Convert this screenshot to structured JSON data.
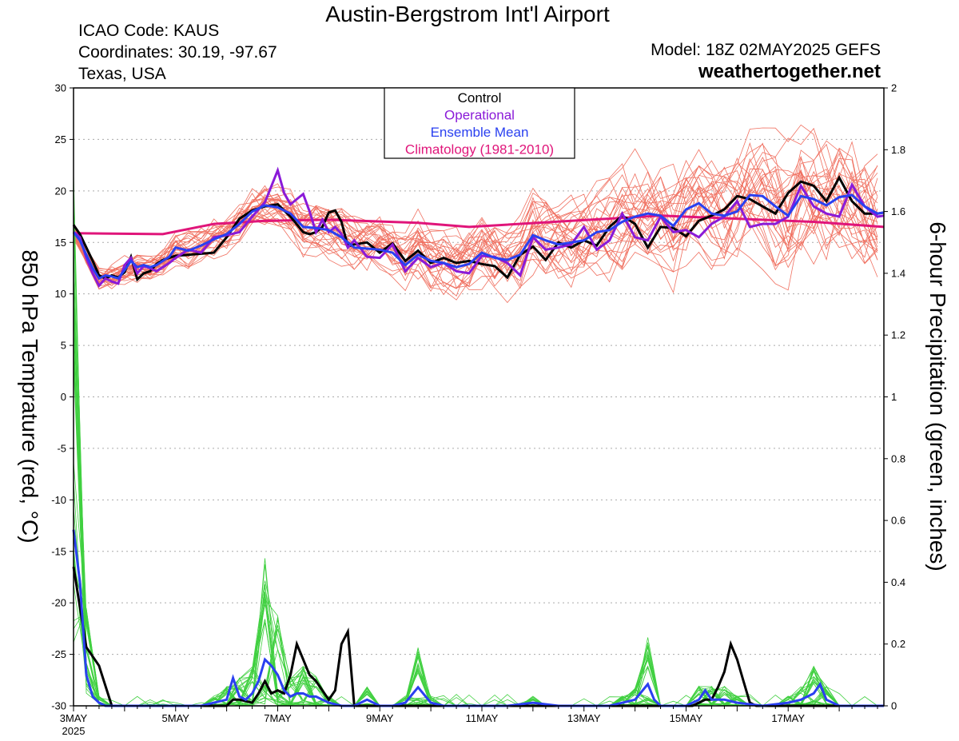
{
  "header": {
    "title": "Austin-Bergstrom Int'l Airport",
    "icao": "ICAO Code: KAUS",
    "coordinates": "Coordinates: 30.19, -97.67",
    "region": "Texas, USA",
    "model": "Model: 18Z 02MAY2025 GEFS",
    "site": "weathertogether.net"
  },
  "chart_data": {
    "type": "line",
    "y_left_label": "850 hPa Temprature (red, °C)",
    "y_right_label": "6-hour Precipitation (green, inches)",
    "y_left_range": [
      -30,
      30
    ],
    "y_right_range": [
      0,
      2
    ],
    "y_left_ticks": [
      "30",
      "25",
      "20",
      "15",
      "10",
      "5",
      "0",
      "-5",
      "-10",
      "-15",
      "-20",
      "-25",
      "-30"
    ],
    "y_right_ticks": [
      "2",
      "1.8",
      "1.6",
      "1.4",
      "1.2",
      "1",
      "0.8",
      "0.6",
      "0.4",
      "0.2",
      "0"
    ],
    "x_range_days": [
      3.0,
      18.875
    ],
    "x_ticks": [
      {
        "day": 3,
        "label": "3MAY",
        "sub": "2025"
      },
      {
        "day": 5,
        "label": "5MAY",
        "sub": ""
      },
      {
        "day": 7,
        "label": "7MAY",
        "sub": ""
      },
      {
        "day": 9,
        "label": "9MAY",
        "sub": ""
      },
      {
        "day": 11,
        "label": "11MAY",
        "sub": ""
      },
      {
        "day": 13,
        "label": "13MAY",
        "sub": ""
      },
      {
        "day": 15,
        "label": "15MAY",
        "sub": ""
      },
      {
        "day": 17,
        "label": "17MAY",
        "sub": ""
      }
    ],
    "grid": true,
    "legend": {
      "position": "top-center",
      "entries": [
        {
          "label": "Control",
          "color": "#000000"
        },
        {
          "label": "Operational",
          "color": "#8a1ad8"
        },
        {
          "label": "Ensemble Mean",
          "color": "#2a40f0"
        },
        {
          "label": "Climatology (1981-2010)",
          "color": "#e0157a"
        }
      ]
    },
    "colors": {
      "control": "#000000",
      "operational": "#8a1ad8",
      "mean": "#2a40f0",
      "climatology": "#e0157a",
      "members_temp": "#f07060",
      "members_precip": "#40d040"
    },
    "series": {
      "climatology": {
        "x": [
          3.0,
          4.75,
          5.75,
          6.75,
          8.0,
          9.75,
          10.75,
          12.75,
          14.5,
          16.0,
          17.5,
          18.875
        ],
        "y": [
          15.9,
          15.8,
          16.8,
          17.1,
          17.2,
          16.9,
          16.5,
          17.1,
          17.6,
          17.3,
          17.0,
          16.5
        ]
      },
      "control_temp": {
        "x": [
          3.0,
          3.125,
          3.25,
          3.375,
          3.5,
          3.625,
          3.75,
          3.875,
          4.0,
          4.125,
          4.25,
          4.375,
          4.5,
          4.625,
          4.75,
          4.875,
          5.0,
          5.25,
          5.5,
          5.75,
          6.0,
          6.25,
          6.5,
          6.75,
          7.0,
          7.25,
          7.5,
          7.625,
          7.75,
          7.875,
          8.0,
          8.125,
          8.25,
          8.375,
          8.5,
          8.75,
          9.0,
          9.25,
          9.5,
          9.75,
          10.0,
          10.25,
          10.5,
          10.75,
          11.0,
          11.25,
          11.5,
          11.75,
          12.0,
          12.25,
          12.5,
          12.75,
          13.0,
          13.25,
          13.5,
          13.75,
          14.0,
          14.25,
          14.5,
          14.75,
          15.0,
          15.25,
          15.5,
          15.75,
          16.0,
          16.25,
          16.5,
          16.75,
          17.0,
          17.25,
          17.5,
          17.75,
          18.0,
          18.25,
          18.5,
          18.75,
          18.875
        ],
        "y": [
          16.7,
          15.8,
          14.5,
          13.2,
          11.8,
          11.5,
          11.8,
          11.6,
          12.1,
          13.6,
          11.4,
          12.0,
          12.2,
          12.9,
          13.3,
          13.5,
          13.7,
          13.8,
          13.9,
          14.0,
          15.5,
          17.3,
          18.1,
          18.5,
          18.7,
          17.5,
          16.0,
          15.8,
          16.0,
          16.5,
          17.9,
          18.1,
          17.0,
          14.6,
          14.8,
          15.0,
          14.0,
          14.9,
          13.2,
          14.2,
          13.0,
          13.5,
          13.0,
          13.2,
          12.9,
          12.7,
          11.6,
          13.8,
          14.6,
          13.3,
          15.0,
          14.5,
          15.2,
          14.7,
          16.5,
          17.6,
          16.8,
          14.5,
          16.5,
          16.4,
          15.6,
          17.1,
          17.6,
          18.2,
          19.5,
          19.2,
          18.5,
          17.8,
          19.8,
          20.9,
          20.5,
          19.0,
          21.3,
          19.0,
          17.8,
          17.8,
          17.9
        ]
      },
      "operational_temp": {
        "x": [
          3.0,
          3.125,
          3.25,
          3.375,
          3.5,
          3.625,
          3.75,
          3.875,
          4.0,
          4.125,
          4.25,
          4.375,
          4.5,
          4.625,
          4.75,
          4.875,
          5.0,
          5.25,
          5.5,
          5.75,
          6.0,
          6.25,
          6.5,
          6.75,
          7.0,
          7.125,
          7.25,
          7.375,
          7.5,
          7.625,
          7.75,
          7.875,
          8.0,
          8.125,
          8.25,
          8.375,
          8.5,
          8.75,
          9.0,
          9.25,
          9.5,
          9.75,
          10.0,
          10.25,
          10.5,
          10.75,
          11.0,
          11.25,
          11.5,
          11.75,
          12.0,
          12.25,
          12.5,
          12.75,
          13.0,
          13.25,
          13.5,
          13.75,
          14.0,
          14.25,
          14.5,
          14.75,
          15.0,
          15.25,
          15.5,
          15.75,
          16.0,
          16.25,
          16.5,
          16.75,
          17.0,
          17.25,
          17.5,
          17.75,
          18.0,
          18.25,
          18.5,
          18.75,
          18.875
        ],
        "y": [
          16.0,
          15.5,
          13.5,
          12.0,
          10.8,
          11.5,
          11.2,
          11.0,
          12.8,
          13.5,
          12.0,
          12.7,
          12.5,
          12.2,
          12.6,
          13.0,
          13.5,
          14.3,
          14.0,
          15.5,
          15.7,
          16.0,
          17.5,
          18.9,
          22.0,
          19.8,
          18.7,
          19.2,
          19.7,
          18.0,
          16.0,
          17.2,
          16.0,
          16.5,
          15.8,
          14.5,
          15.2,
          13.6,
          13.5,
          14.8,
          12.2,
          13.5,
          12.6,
          13.0,
          12.2,
          12.0,
          13.7,
          13.6,
          13.0,
          11.8,
          15.5,
          14.3,
          14.5,
          14.8,
          16.5,
          14.3,
          15.2,
          17.8,
          15.5,
          15.2,
          17.5,
          16.0,
          16.2,
          15.5,
          16.8,
          17.5,
          19.0,
          16.5,
          16.8,
          16.8,
          17.5,
          20.5,
          18.5,
          17.8,
          17.5,
          20.6,
          18.5,
          17.5,
          17.6
        ]
      },
      "mean_temp": {
        "x": [
          3.0,
          3.125,
          3.25,
          3.375,
          3.5,
          3.625,
          3.75,
          3.875,
          4.0,
          4.125,
          4.25,
          4.375,
          4.5,
          4.625,
          4.75,
          4.875,
          5.0,
          5.25,
          5.5,
          5.75,
          6.0,
          6.25,
          6.5,
          6.75,
          7.0,
          7.25,
          7.5,
          7.75,
          8.0,
          8.25,
          8.5,
          8.75,
          9.0,
          9.25,
          9.5,
          9.75,
          10.0,
          10.25,
          10.5,
          10.75,
          11.0,
          11.25,
          11.5,
          11.75,
          12.0,
          12.25,
          12.5,
          12.75,
          13.0,
          13.25,
          13.5,
          13.75,
          14.0,
          14.25,
          14.5,
          14.75,
          15.0,
          15.25,
          15.5,
          15.75,
          16.0,
          16.25,
          16.5,
          16.75,
          17.0,
          17.25,
          17.5,
          17.75,
          18.0,
          18.25,
          18.5,
          18.75,
          18.875
        ],
        "y": [
          16.0,
          15.2,
          13.8,
          12.5,
          11.5,
          11.8,
          11.7,
          11.5,
          12.3,
          13.2,
          12.6,
          12.8,
          12.6,
          12.8,
          13.2,
          13.6,
          14.5,
          14.2,
          14.7,
          15.3,
          15.8,
          16.8,
          18.0,
          18.6,
          18.4,
          17.8,
          16.5,
          16.4,
          16.2,
          15.5,
          14.5,
          14.4,
          14.3,
          14.0,
          12.8,
          13.8,
          13.2,
          13.0,
          12.6,
          12.9,
          14.0,
          13.5,
          13.3,
          13.8,
          15.7,
          15.2,
          14.8,
          15.0,
          15.2,
          16.0,
          16.2,
          17.0,
          17.5,
          17.8,
          17.6,
          16.6,
          18.2,
          18.8,
          17.8,
          17.6,
          18.0,
          19.6,
          19.5,
          18.5,
          17.6,
          19.5,
          19.2,
          18.6,
          19.4,
          19.6,
          18.5,
          17.8,
          17.9
        ]
      },
      "control_precip": {
        "x": [
          3.0,
          3.25,
          3.5,
          3.75,
          4.0,
          4.25,
          4.5,
          5.0,
          5.5,
          6.0,
          6.125,
          6.25,
          6.5,
          6.625,
          6.75,
          6.875,
          7.0,
          7.125,
          7.25,
          7.375,
          7.5,
          7.625,
          7.75,
          7.875,
          8.0,
          8.125,
          8.25,
          8.375,
          8.5,
          8.625,
          8.75,
          9.0,
          9.5,
          10.0,
          11.0,
          12.0,
          13.0,
          14.0,
          15.0,
          15.125,
          15.25,
          15.375,
          15.5,
          15.625,
          15.75,
          15.875,
          16.0,
          16.125,
          16.25,
          16.375,
          16.5,
          17.0,
          18.0,
          18.875
        ],
        "y": [
          0.45,
          0.19,
          0.13,
          0.0,
          0.0,
          0.0,
          0.0,
          0.0,
          0.0,
          0.0,
          0.02,
          0.02,
          0.01,
          0.04,
          0.08,
          0.04,
          0.05,
          0.04,
          0.1,
          0.2,
          0.15,
          0.1,
          0.08,
          0.05,
          0.02,
          0.05,
          0.2,
          0.24,
          0.0,
          0.0,
          0.0,
          0.0,
          0.0,
          0.0,
          0.0,
          0.0,
          0.0,
          0.0,
          0.0,
          0.0,
          0.01,
          0.02,
          0.02,
          0.06,
          0.11,
          0.2,
          0.15,
          0.08,
          0.01,
          0.0,
          0.0,
          0.0,
          0.0,
          0.0
        ]
      },
      "mean_precip": {
        "x": [
          3.0,
          3.125,
          3.25,
          3.375,
          3.5,
          3.625,
          3.75,
          3.875,
          4.0,
          4.25,
          4.5,
          5.0,
          5.5,
          5.75,
          6.0,
          6.125,
          6.25,
          6.375,
          6.5,
          6.625,
          6.75,
          6.875,
          7.0,
          7.125,
          7.25,
          7.375,
          7.5,
          7.625,
          7.75,
          7.875,
          8.0,
          8.25,
          8.5,
          8.75,
          9.0,
          9.25,
          9.5,
          9.75,
          10.0,
          10.25,
          10.5,
          10.75,
          11.0,
          11.5,
          12.0,
          12.5,
          13.0,
          13.5,
          14.0,
          14.25,
          14.375,
          14.5,
          14.75,
          15.0,
          15.25,
          15.375,
          15.5,
          15.75,
          16.0,
          16.5,
          17.0,
          17.25,
          17.5,
          17.625,
          17.75,
          18.0,
          18.5,
          18.875
        ],
        "y": [
          0.57,
          0.4,
          0.1,
          0.03,
          0.01,
          0.0,
          0.0,
          0.0,
          0.0,
          0.0,
          0.0,
          0.0,
          0.0,
          0.01,
          0.02,
          0.09,
          0.03,
          0.02,
          0.04,
          0.08,
          0.15,
          0.13,
          0.1,
          0.05,
          0.03,
          0.04,
          0.04,
          0.03,
          0.03,
          0.02,
          0.01,
          0.0,
          0.0,
          0.02,
          0.0,
          0.0,
          0.01,
          0.06,
          0.01,
          0.0,
          0.0,
          0.0,
          0.0,
          0.0,
          0.01,
          0.0,
          0.0,
          0.0,
          0.02,
          0.07,
          0.02,
          0.0,
          0.0,
          0.0,
          0.02,
          0.05,
          0.02,
          0.02,
          0.01,
          0.0,
          0.01,
          0.02,
          0.04,
          0.07,
          0.02,
          0.0,
          0.0,
          0.0
        ]
      }
    },
    "ensemble_seed": 7
  }
}
